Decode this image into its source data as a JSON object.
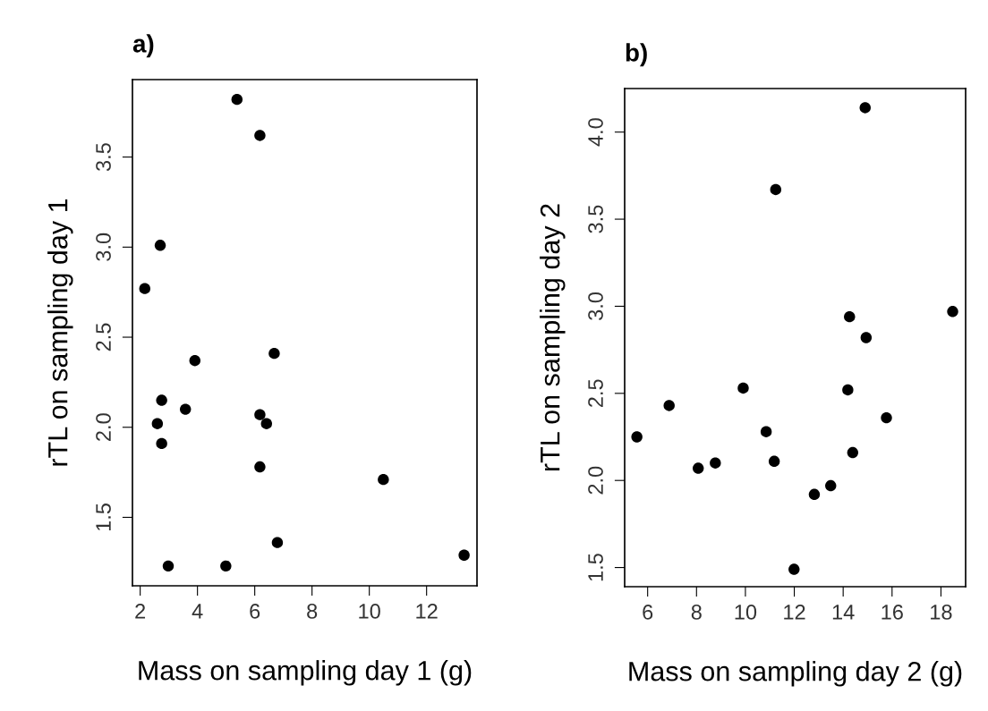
{
  "chart_data": [
    {
      "type": "scatter",
      "title": "a)",
      "xlabel": "Mass on sampling day 1 (g)",
      "ylabel": "rTL on sampling day 1",
      "marker": "circle",
      "grid": false,
      "legend": false,
      "xlim": [
        1.73,
        13.76
      ],
      "ylim": [
        1.12,
        3.93
      ],
      "xticks": [
        2,
        4,
        6,
        8,
        10,
        12
      ],
      "yticks": [
        1.5,
        {
          "value": 2,
          "label": "2.0"
        },
        2.5,
        {
          "value": 3,
          "label": "3.0"
        },
        3.5
      ],
      "series": [
        {
          "color": "#000000",
          "x": [
            5.38,
            6.18,
            2.7,
            2.16,
            3.91,
            6.68,
            2.75,
            3.58,
            2.6,
            6.18,
            6.41,
            2.75,
            6.18,
            10.49,
            6.79,
            2.98,
            4.99,
            13.31
          ],
          "values": [
            3.82,
            3.62,
            3.01,
            2.77,
            2.37,
            2.41,
            2.15,
            2.1,
            2.02,
            2.07,
            2.02,
            1.91,
            1.78,
            1.71,
            1.36,
            1.23,
            1.23,
            1.29
          ]
        }
      ]
    },
    {
      "type": "scatter",
      "title": "b)",
      "xlabel": "Mass on sampling day 2 (g)",
      "ylabel": "rTL on sampling day 2",
      "marker": "circle",
      "grid": false,
      "legend": false,
      "xlim": [
        5.06,
        19.01
      ],
      "ylim": [
        1.39,
        4.25
      ],
      "xticks": [
        6,
        8,
        10,
        12,
        14,
        16,
        18
      ],
      "yticks": [
        1.5,
        {
          "value": 2,
          "label": "2.0"
        },
        2.5,
        {
          "value": 3,
          "label": "3.0"
        },
        3.5,
        {
          "value": 4,
          "label": "4.0"
        }
      ],
      "series": [
        {
          "color": "#000000",
          "x": [
            14.9,
            11.24,
            14.26,
            18.48,
            14.94,
            9.91,
            14.19,
            6.88,
            15.77,
            5.56,
            10.85,
            14.39,
            8.77,
            8.07,
            11.18,
            13.49,
            12.82,
            11.99
          ],
          "values": [
            4.14,
            3.67,
            2.94,
            2.97,
            2.82,
            2.53,
            2.52,
            2.43,
            2.36,
            2.25,
            2.28,
            2.16,
            2.1,
            2.07,
            2.11,
            1.97,
            1.92,
            1.49
          ]
        }
      ]
    }
  ]
}
